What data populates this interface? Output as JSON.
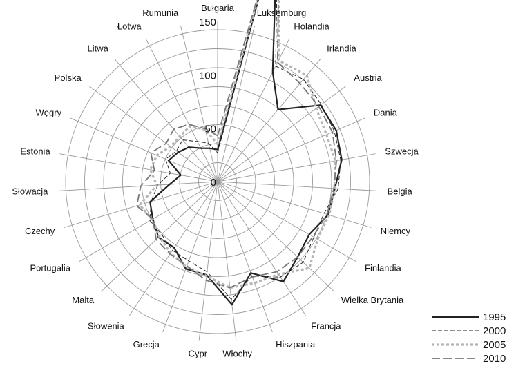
{
  "chart_data": {
    "type": "radar",
    "categories": [
      "Bułgaria",
      "Luksemburg",
      "Holandia",
      "Irlandia",
      "Austria",
      "Dania",
      "Szwecja",
      "Belgia",
      "Niemcy",
      "Finlandia",
      "Wielka Brytania",
      "Francja",
      "Hiszpania",
      "Włochy",
      "Cypr",
      "Grecja",
      "Słowenia",
      "Malta",
      "Portugalia",
      "Czechy",
      "Słowacja",
      "Estonia",
      "Węgry",
      "Polska",
      "Litwa",
      "Łotwa",
      "Rumunia"
    ],
    "ticks": [
      "0",
      "50",
      "100",
      "150"
    ],
    "rmax": 150,
    "series": [
      {
        "name": "1995",
        "values": [
          30,
          242,
          115,
          88,
          120,
          121,
          118,
          110,
          108,
          99,
          103,
          112,
          91,
          116,
          88,
          87,
          74,
          76,
          70,
          66,
          45,
          35,
          50,
          46,
          42,
          35,
          32
        ],
        "color": "#222222",
        "width": 2.2,
        "dash": ""
      },
      {
        "name": "2000",
        "values": [
          27,
          245,
          121,
          125,
          121,
          119,
          117,
          113,
          104,
          104,
          110,
          107,
          94,
          111,
          85,
          79,
          77,
          72,
          73,
          65,
          56,
          45,
          53,
          48,
          51,
          42,
          37
        ],
        "color": "#222222",
        "width": 1,
        "dash": "6,3"
      },
      {
        "name": "2005",
        "values": [
          35,
          250,
          127,
          130,
          115,
          111,
          112,
          110,
          109,
          108,
          118,
          104,
          101,
          100,
          89,
          85,
          80,
          75,
          71,
          76,
          57,
          64,
          62,
          55,
          55,
          58,
          50
        ],
        "color": "#b5b5b5",
        "width": 3.2,
        "dash": "4,3"
      },
      {
        "name": "2010",
        "values": [
          43,
          250,
          125,
          120,
          118,
          117,
          113,
          109,
          107,
          103,
          103,
          101,
          95,
          100,
          93,
          84,
          81,
          79,
          70,
          79,
          72,
          60,
          68,
          60,
          64,
          60,
          51
        ],
        "color": "#777777",
        "width": 1.8,
        "dash": "12,5"
      }
    ]
  }
}
